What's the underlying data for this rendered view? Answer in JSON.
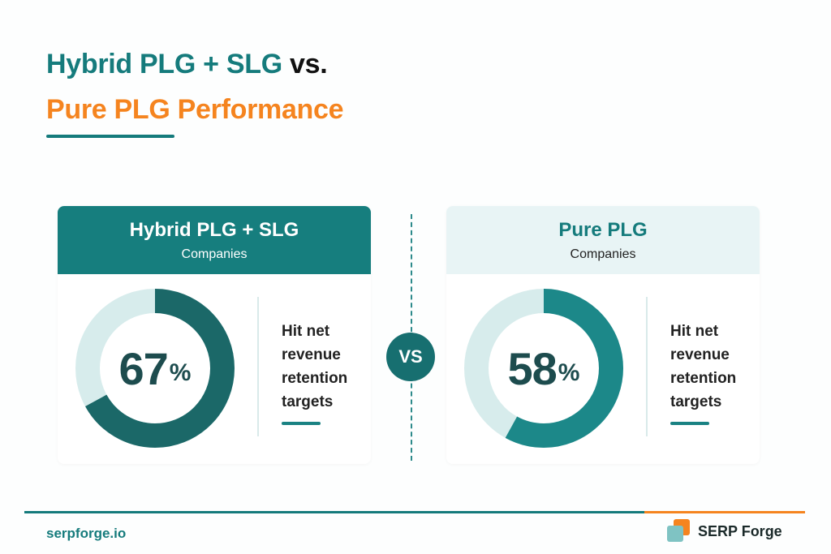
{
  "title": {
    "line1_part1": "Hybrid PLG + SLG",
    "line1_part2": " vs.",
    "line2": "Pure PLG Performance"
  },
  "colors": {
    "teal": "#157b7c",
    "orange": "#f5841f",
    "dark_text": "#111111",
    "donut_track": "#d7ecec",
    "left_arc": "#1b6868",
    "right_arc": "#1c8889",
    "underline": "#157b7c",
    "metric_line": "#1a8283"
  },
  "vs_label": "VS",
  "chart_data": [
    {
      "type": "pie",
      "title": "Hybrid PLG + SLG",
      "subtitle": "Companies",
      "value": 67,
      "value_label": "67",
      "unit": "%",
      "metric": [
        "Hit net",
        "revenue",
        "retention",
        "targets"
      ]
    },
    {
      "type": "pie",
      "title": "Pure PLG",
      "subtitle": "Companies",
      "value": 58,
      "value_label": "58",
      "unit": "%",
      "metric": [
        "Hit net",
        "revenue",
        "retention",
        "targets"
      ]
    }
  ],
  "footer": {
    "url": "serpforge.io",
    "brand": "SERP Forge"
  }
}
